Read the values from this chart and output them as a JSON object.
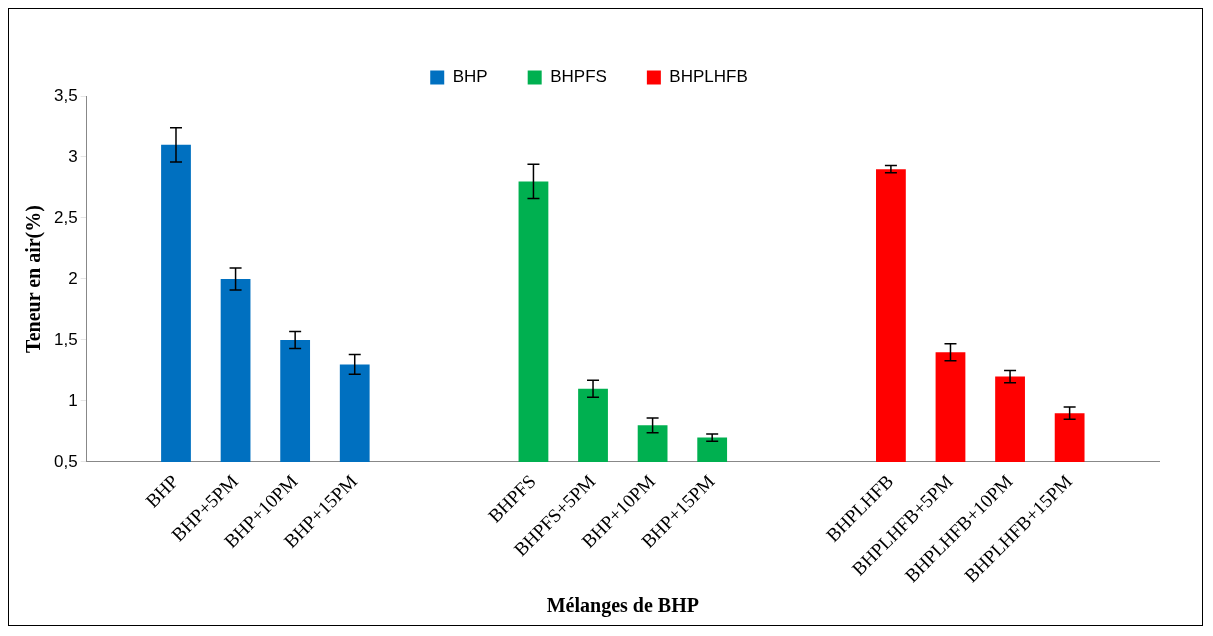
{
  "chart_data": {
    "type": "bar",
    "xlabel": "Mélanges de BHP",
    "ylabel": "Teneur en air(%)",
    "categories": [
      null,
      "BHP",
      "BHP+5PM",
      "BHP+10PM",
      "BHP+15PM",
      null,
      null,
      "BHPFS",
      "BHPFS+5PM",
      "BHP+10PM",
      "BHP+15PM",
      null,
      null,
      "BHPLHFB",
      "BHPLHFB+5PM",
      "BHPLHFB+10PM",
      "BHPLHFB+15PM",
      null
    ],
    "series": [
      {
        "name": "BHP",
        "color": "#0070c0",
        "values": [
          null,
          3.1,
          2.0,
          1.5,
          1.3,
          null,
          null,
          null,
          null,
          null,
          null,
          null,
          null,
          null,
          null,
          null,
          null,
          null
        ],
        "errors": [
          null,
          0.14,
          0.09,
          0.07,
          0.08,
          null,
          null,
          null,
          null,
          null,
          null,
          null,
          null,
          null,
          null,
          null,
          null,
          null
        ]
      },
      {
        "name": "BHPFS",
        "color": "#00b050",
        "values": [
          null,
          null,
          null,
          null,
          null,
          null,
          null,
          2.8,
          1.1,
          0.8,
          0.7,
          null,
          null,
          null,
          null,
          null,
          null,
          null
        ],
        "errors": [
          null,
          null,
          null,
          null,
          null,
          null,
          null,
          0.14,
          0.07,
          0.06,
          0.03,
          null,
          null,
          null,
          null,
          null,
          null,
          null
        ]
      },
      {
        "name": "BHPLHFB",
        "color": "#ff0000",
        "values": [
          null,
          null,
          null,
          null,
          null,
          null,
          null,
          null,
          null,
          null,
          null,
          null,
          null,
          2.9,
          1.4,
          1.2,
          0.9,
          null
        ],
        "errors": [
          null,
          null,
          null,
          null,
          null,
          null,
          null,
          null,
          null,
          null,
          null,
          null,
          null,
          0.03,
          0.07,
          0.05,
          0.05,
          null
        ]
      }
    ],
    "ylim": [
      0.5,
      3.5
    ],
    "yticks": [
      {
        "value": 0.5,
        "label": "0,5"
      },
      {
        "value": 1,
        "label": "1"
      },
      {
        "value": 1.5,
        "label": "1,5"
      },
      {
        "value": 2,
        "label": "2"
      },
      {
        "value": 2.5,
        "label": "2,5"
      },
      {
        "value": 3,
        "label": "3"
      },
      {
        "value": 3.5,
        "label": "3,5"
      }
    ],
    "grid": false,
    "legend": "top"
  }
}
